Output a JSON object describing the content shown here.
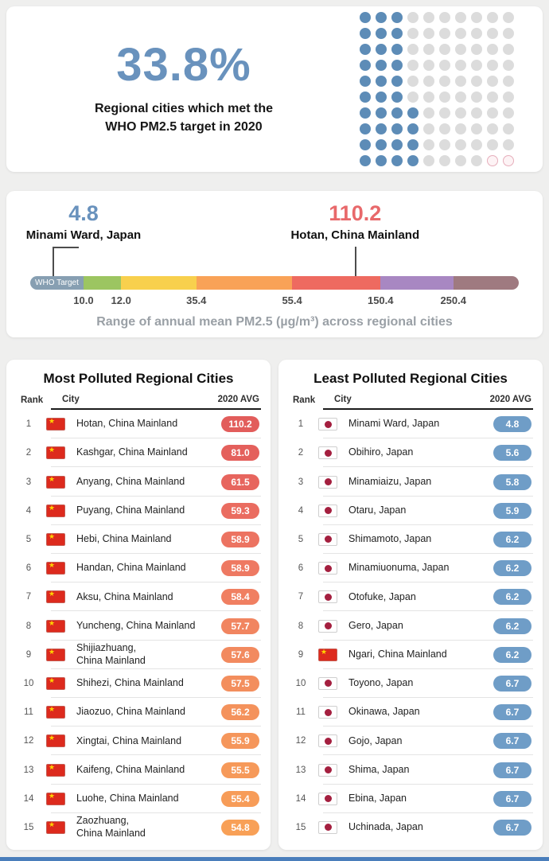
{
  "stat_card": {
    "value": "33.8%",
    "color": "#6992bd",
    "caption_line1": "Regional cities which met the",
    "caption_line2": "WHO PM2.5 target in 2020",
    "waffle": {
      "total": 100,
      "filled": 34,
      "filled_color": "#5d8cb7",
      "empty_color": "#dcdcdc",
      "pink_outline_count": 2,
      "pink_color": "#e6aebb"
    }
  },
  "range_card": {
    "min_value": "4.8",
    "min_label": "Minami Ward, Japan",
    "min_color": "#6992bd",
    "max_value": "110.2",
    "max_label": "Hotan, China Mainland",
    "max_color": "#e8696b",
    "who_label": "WHO Target",
    "segments": [
      {
        "name": "who-target",
        "color": "#879fb2",
        "width": 10.9
      },
      {
        "name": "good",
        "color": "#9cc561",
        "width": 7.7
      },
      {
        "name": "moderate",
        "color": "#f8d04d",
        "width": 15.4
      },
      {
        "name": "unhealthy-sensitive",
        "color": "#f9a257",
        "width": 19.6
      },
      {
        "name": "unhealthy",
        "color": "#ee6a60",
        "width": 18.1
      },
      {
        "name": "very-unhealthy",
        "color": "#a887c2",
        "width": 14.9
      },
      {
        "name": "hazardous",
        "color": "#9f7a80",
        "width": 13.4
      }
    ],
    "ticks": [
      {
        "label": "10.0",
        "pos": 10.9
      },
      {
        "label": "12.0",
        "pos": 18.6
      },
      {
        "label": "35.4",
        "pos": 34.0
      },
      {
        "label": "55.4",
        "pos": 53.6
      },
      {
        "label": "150.4",
        "pos": 71.7
      },
      {
        "label": "250.4",
        "pos": 86.6
      }
    ],
    "markers": {
      "min_pos": 4.5,
      "min_cap_width": 5.5,
      "max_pos": 66.5
    },
    "caption": "Range of annual mean PM2.5 (µg/m³) across regional cities"
  },
  "most_polluted": {
    "title": "Most Polluted Regional Cities",
    "headers": [
      "Rank",
      "City",
      "2020 AVG"
    ],
    "rows": [
      {
        "rank": "1",
        "flag": "cn",
        "city": "Hotan, China Mainland",
        "value": "110.2",
        "color": "#e25d5b"
      },
      {
        "rank": "2",
        "flag": "cn",
        "city": "Kashgar, China Mainland",
        "value": "81.0",
        "color": "#e4605c"
      },
      {
        "rank": "3",
        "flag": "cn",
        "city": "Anyang, China Mainland",
        "value": "61.5",
        "color": "#e7655e"
      },
      {
        "rank": "4",
        "flag": "cn",
        "city": "Puyang, China Mainland",
        "value": "59.3",
        "color": "#ea6c60"
      },
      {
        "rank": "5",
        "flag": "cn",
        "city": "Hebi, China Mainland",
        "value": "58.9",
        "color": "#ec7361"
      },
      {
        "rank": "6",
        "flag": "cn",
        "city": "Handan, China Mainland",
        "value": "58.9",
        "color": "#ee7962"
      },
      {
        "rank": "7",
        "flag": "cn",
        "city": "Aksu, China Mainland",
        "value": "58.4",
        "color": "#f07f61"
      },
      {
        "rank": "8",
        "flag": "cn",
        "city": "Yuncheng, China Mainland",
        "value": "57.7",
        "color": "#f18560"
      },
      {
        "rank": "9",
        "flag": "cn",
        "city": "Shijiazhuang,\nChina Mainland",
        "value": "57.6",
        "color": "#f28a5f"
      },
      {
        "rank": "10",
        "flag": "cn",
        "city": "Shihezi, China Mainland",
        "value": "57.5",
        "color": "#f38e5d"
      },
      {
        "rank": "11",
        "flag": "cn",
        "city": "Jiaozuo, China Mainland",
        "value": "56.2",
        "color": "#f4925c"
      },
      {
        "rank": "12",
        "flag": "cn",
        "city": "Xingtai, China Mainland",
        "value": "55.9",
        "color": "#f5965b"
      },
      {
        "rank": "13",
        "flag": "cn",
        "city": "Kaifeng, China Mainland",
        "value": "55.5",
        "color": "#f69959"
      },
      {
        "rank": "14",
        "flag": "cn",
        "city": "Luohe, China Mainland",
        "value": "55.4",
        "color": "#f79c58"
      },
      {
        "rank": "15",
        "flag": "cn",
        "city": "Zaozhuang,\nChina Mainland",
        "value": "54.8",
        "color": "#f8a057"
      }
    ]
  },
  "least_polluted": {
    "title": "Least Polluted Regional Cities",
    "headers": [
      "Rank",
      "City",
      "2020 AVG"
    ],
    "badge_color": "#6f9dc7",
    "rows": [
      {
        "rank": "1",
        "flag": "jp",
        "city": "Minami Ward, Japan",
        "value": "4.8"
      },
      {
        "rank": "2",
        "flag": "jp",
        "city": "Obihiro, Japan",
        "value": "5.6"
      },
      {
        "rank": "3",
        "flag": "jp",
        "city": "Minamiaizu, Japan",
        "value": "5.8"
      },
      {
        "rank": "4",
        "flag": "jp",
        "city": "Otaru, Japan",
        "value": "5.9"
      },
      {
        "rank": "5",
        "flag": "jp",
        "city": "Shimamoto, Japan",
        "value": "6.2"
      },
      {
        "rank": "6",
        "flag": "jp",
        "city": "Minamiuonuma, Japan",
        "value": "6.2"
      },
      {
        "rank": "7",
        "flag": "jp",
        "city": "Otofuke, Japan",
        "value": "6.2"
      },
      {
        "rank": "8",
        "flag": "jp",
        "city": "Gero, Japan",
        "value": "6.2"
      },
      {
        "rank": "9",
        "flag": "cn",
        "city": "Ngari, China Mainland",
        "value": "6.2"
      },
      {
        "rank": "10",
        "flag": "jp",
        "city": "Toyono, Japan",
        "value": "6.7"
      },
      {
        "rank": "11",
        "flag": "jp",
        "city": "Okinawa, Japan",
        "value": "6.7"
      },
      {
        "rank": "12",
        "flag": "jp",
        "city": "Gojo, Japan",
        "value": "6.7"
      },
      {
        "rank": "13",
        "flag": "jp",
        "city": "Shima, Japan",
        "value": "6.7"
      },
      {
        "rank": "14",
        "flag": "jp",
        "city": "Ebina, Japan",
        "value": "6.7"
      },
      {
        "rank": "15",
        "flag": "jp",
        "city": "Uchinada, Japan",
        "value": "6.7"
      }
    ]
  },
  "footer_color": "#4a7ebb",
  "chart_data": [
    {
      "type": "pie",
      "subtype": "waffle",
      "title": "Regional cities which met the WHO PM2.5 target in 2020",
      "value_pct": 33.8,
      "total_dots": 100,
      "filled_dots": 34,
      "filled_color": "#5d8cb7",
      "empty_color": "#dcdcdc"
    },
    {
      "type": "bar",
      "subtype": "range-scale",
      "title": "Range of annual mean PM2.5 (µg/m³) across regional cities",
      "min": 4.8,
      "min_city": "Minami Ward, Japan",
      "max": 110.2,
      "max_city": "Hotan, China Mainland",
      "scale_breaks": [
        10.0,
        12.0,
        35.4,
        55.4,
        150.4,
        250.4
      ],
      "who_target_label": "WHO Target"
    },
    {
      "type": "table",
      "title": "Most Polluted Regional Cities",
      "columns": [
        "Rank",
        "City",
        "2020 AVG"
      ],
      "categories": [
        "Hotan, China Mainland",
        "Kashgar, China Mainland",
        "Anyang, China Mainland",
        "Puyang, China Mainland",
        "Hebi, China Mainland",
        "Handan, China Mainland",
        "Aksu, China Mainland",
        "Yuncheng, China Mainland",
        "Shijiazhuang, China Mainland",
        "Shihezi, China Mainland",
        "Jiaozuo, China Mainland",
        "Xingtai, China Mainland",
        "Kaifeng, China Mainland",
        "Luohe, China Mainland",
        "Zaozhuang, China Mainland"
      ],
      "values": [
        110.2,
        81.0,
        61.5,
        59.3,
        58.9,
        58.9,
        58.4,
        57.7,
        57.6,
        57.5,
        56.2,
        55.9,
        55.5,
        55.4,
        54.8
      ]
    },
    {
      "type": "table",
      "title": "Least Polluted Regional Cities",
      "columns": [
        "Rank",
        "City",
        "2020 AVG"
      ],
      "categories": [
        "Minami Ward, Japan",
        "Obihiro, Japan",
        "Minamiaizu, Japan",
        "Otaru, Japan",
        "Shimamoto, Japan",
        "Minamiuonuma, Japan",
        "Otofuke, Japan",
        "Gero, Japan",
        "Ngari, China Mainland",
        "Toyono, Japan",
        "Okinawa, Japan",
        "Gojo, Japan",
        "Shima, Japan",
        "Ebina, Japan",
        "Uchinada, Japan"
      ],
      "values": [
        4.8,
        5.6,
        5.8,
        5.9,
        6.2,
        6.2,
        6.2,
        6.2,
        6.2,
        6.7,
        6.7,
        6.7,
        6.7,
        6.7,
        6.7
      ]
    }
  ]
}
